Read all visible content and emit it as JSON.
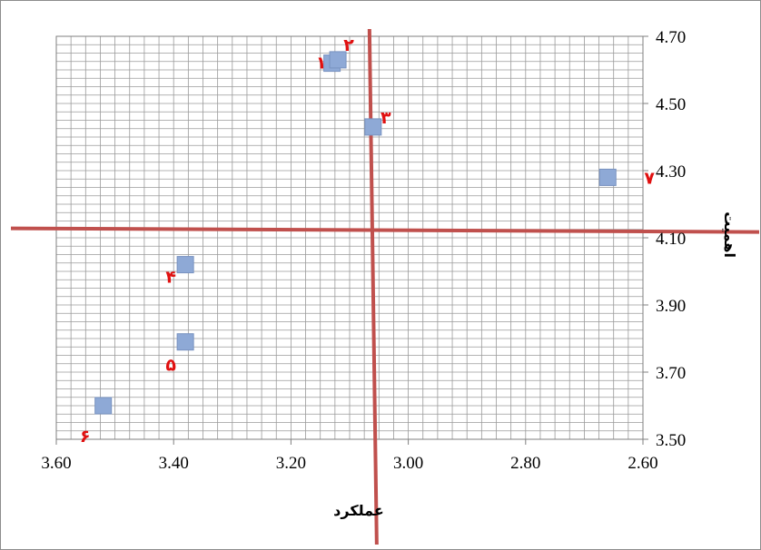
{
  "chart_data": {
    "type": "scatter",
    "xlabel": "عملکرد",
    "ylabel": "اهمیت",
    "xlim": [
      2.6,
      3.6
    ],
    "ylim": [
      3.5,
      4.7
    ],
    "x_reversed": true,
    "x_ticks": [
      "3.60",
      "3.40",
      "3.20",
      "3.00",
      "2.80",
      "2.60"
    ],
    "y_ticks": [
      "4.70",
      "4.50",
      "4.30",
      "4.10",
      "3.90",
      "3.70",
      "3.50"
    ],
    "grid": true,
    "quadrant_lines": {
      "x": 3.06,
      "y": 4.12
    },
    "marker_color": "#8EA9D6",
    "quadrant_color": "#C0504D",
    "label_color": "#E01010",
    "points": [
      {
        "label": "۱",
        "x": 3.13,
        "y": 4.62
      },
      {
        "label": "۲",
        "x": 3.12,
        "y": 4.63
      },
      {
        "label": "۳",
        "x": 3.06,
        "y": 4.43
      },
      {
        "label": "۴",
        "x": 3.38,
        "y": 4.02
      },
      {
        "label": "۵",
        "x": 3.38,
        "y": 3.79
      },
      {
        "label": "۶",
        "x": 3.52,
        "y": 3.6
      },
      {
        "label": "۷",
        "x": 2.66,
        "y": 4.28
      }
    ]
  }
}
